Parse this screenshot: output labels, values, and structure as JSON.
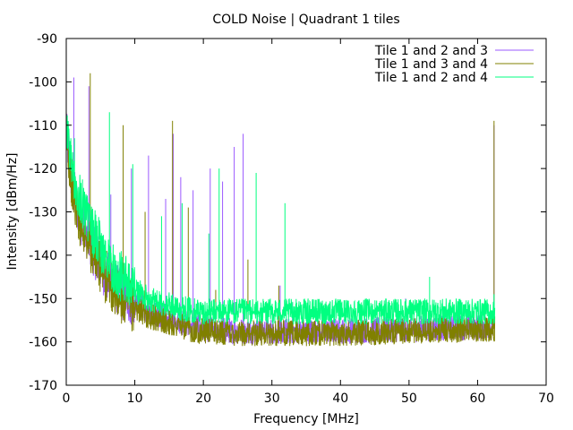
{
  "chart_data": {
    "type": "line",
    "title": "COLD Noise | Quadrant 1 tiles",
    "xlabel": "Frequency [MHz]",
    "ylabel": "Intensity [dBm/Hz]",
    "xlim": [
      0,
      70
    ],
    "ylim": [
      -170,
      -90
    ],
    "xticks": [
      0,
      10,
      20,
      30,
      40,
      50,
      60,
      70
    ],
    "yticks": [
      -170,
      -160,
      -150,
      -140,
      -130,
      -120,
      -110,
      -100,
      -90
    ],
    "grid": false,
    "legend_position": "top-right",
    "series": [
      {
        "name": "Tile 1 and 2 and 3",
        "color": "#9b59ff",
        "floor": [
          [
            0,
            -112
          ],
          [
            1,
            -125
          ],
          [
            2,
            -131
          ],
          [
            3,
            -135
          ],
          [
            4,
            -139
          ],
          [
            5,
            -142
          ],
          [
            6,
            -145
          ],
          [
            7,
            -147
          ],
          [
            8,
            -149
          ],
          [
            10,
            -151
          ],
          [
            12,
            -153
          ],
          [
            14,
            -154
          ],
          [
            16,
            -155
          ],
          [
            18,
            -156
          ],
          [
            20,
            -157
          ],
          [
            25,
            -157.5
          ],
          [
            30,
            -157.5
          ],
          [
            40,
            -157.5
          ],
          [
            50,
            -157
          ],
          [
            62.5,
            -156.5
          ]
        ],
        "peaks": [
          [
            1.1,
            -99
          ],
          [
            3.3,
            -101
          ],
          [
            6.5,
            -126
          ],
          [
            9.5,
            -120
          ],
          [
            12,
            -117
          ],
          [
            14.5,
            -127
          ],
          [
            15.6,
            -112
          ],
          [
            16.7,
            -122
          ],
          [
            18.5,
            -125
          ],
          [
            21,
            -120
          ],
          [
            22.8,
            -123
          ],
          [
            24.5,
            -115
          ],
          [
            25.8,
            -112
          ],
          [
            31.2,
            -147
          ],
          [
            33,
            -151
          ],
          [
            49.5,
            -150
          ],
          [
            62.4,
            -110
          ]
        ]
      },
      {
        "name": "Tile 1 and 3 and 4",
        "color": "#808000",
        "floor": [
          [
            0,
            -112
          ],
          [
            1,
            -126
          ],
          [
            2,
            -132
          ],
          [
            3,
            -136
          ],
          [
            4,
            -140
          ],
          [
            5,
            -143
          ],
          [
            6,
            -146
          ],
          [
            7,
            -148
          ],
          [
            8,
            -150
          ],
          [
            10,
            -152
          ],
          [
            12,
            -154
          ],
          [
            14,
            -155
          ],
          [
            16,
            -156
          ],
          [
            18,
            -157
          ],
          [
            20,
            -157.5
          ],
          [
            25,
            -158
          ],
          [
            30,
            -158
          ],
          [
            40,
            -158
          ],
          [
            50,
            -157.5
          ],
          [
            62.5,
            -157
          ]
        ],
        "peaks": [
          [
            3.5,
            -98
          ],
          [
            5.9,
            -139
          ],
          [
            8.3,
            -110
          ],
          [
            11.5,
            -130
          ],
          [
            15.5,
            -109
          ],
          [
            17.8,
            -129
          ],
          [
            21.8,
            -148
          ],
          [
            26.5,
            -141
          ],
          [
            31,
            -147
          ],
          [
            53.2,
            -155
          ],
          [
            62.4,
            -109
          ]
        ]
      },
      {
        "name": "Tile 1 and 2 and 4",
        "color": "#00ff80",
        "floor": [
          [
            0,
            -110
          ],
          [
            1,
            -121
          ],
          [
            2,
            -127
          ],
          [
            3,
            -131
          ],
          [
            4,
            -135
          ],
          [
            5,
            -138
          ],
          [
            6,
            -141
          ],
          [
            7,
            -143
          ],
          [
            8,
            -145
          ],
          [
            10,
            -148
          ],
          [
            12,
            -150
          ],
          [
            14,
            -151
          ],
          [
            16,
            -152
          ],
          [
            18,
            -152.5
          ],
          [
            20,
            -153
          ],
          [
            25,
            -153
          ],
          [
            30,
            -153
          ],
          [
            40,
            -153
          ],
          [
            50,
            -153
          ],
          [
            62.5,
            -153
          ]
        ],
        "peaks": [
          [
            1.2,
            -113
          ],
          [
            6.3,
            -107
          ],
          [
            9.7,
            -119
          ],
          [
            13.9,
            -131
          ],
          [
            16.9,
            -128
          ],
          [
            20.8,
            -135
          ],
          [
            22.3,
            -120
          ],
          [
            27.7,
            -121
          ],
          [
            31.9,
            -128
          ],
          [
            53,
            -145
          ],
          [
            62.4,
            -149
          ]
        ]
      }
    ]
  }
}
